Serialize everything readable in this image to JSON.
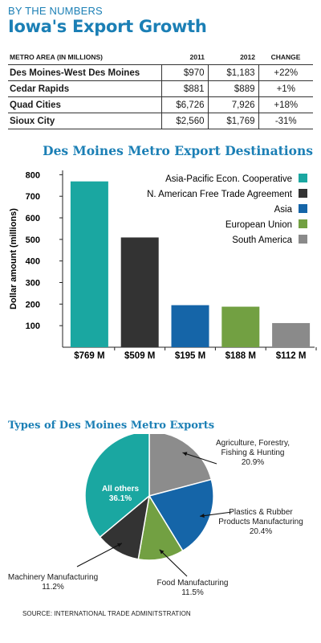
{
  "header": {
    "kicker": "BY THE NUMBERS",
    "title": "Iowa's Export Growth"
  },
  "table": {
    "columns": [
      "METRO AREA (IN MILLIONS)",
      "2011",
      "2012",
      "CHANGE"
    ],
    "rows": [
      [
        "Des Moines-West Des Moines",
        "$970",
        "$1,183",
        "+22%"
      ],
      [
        "Cedar Rapids",
        "$881",
        "$889",
        "+1%"
      ],
      [
        "Quad Cities",
        "$6,726",
        "7,926",
        "+18%"
      ],
      [
        "Sioux City",
        "$2,560",
        "$1,769",
        "-31%"
      ]
    ]
  },
  "chart_data": [
    {
      "type": "bar",
      "title": "Des Moines Metro Export Destinations",
      "ylabel": "Dollar amount (millions)",
      "ylim": [
        0,
        820
      ],
      "yticks": [
        100,
        200,
        300,
        400,
        500,
        600,
        700,
        800
      ],
      "categories": [
        "Asia-Pacific Econ. Cooperative",
        "N. American Free Trade Agreement",
        "Asia",
        "European Union",
        "South America"
      ],
      "values": [
        769,
        509,
        195,
        188,
        112
      ],
      "value_labels": [
        "$769 M",
        "$509 M",
        "$195 M",
        "$188 M",
        "$112 M"
      ],
      "colors": [
        "#1aa7a1",
        "#333333",
        "#1565a8",
        "#72a042",
        "#8a8a8a"
      ],
      "legend_position": "top-right",
      "grid": false
    },
    {
      "type": "pie",
      "title": "Types of Des Moines Metro Exports",
      "slices": [
        {
          "label": "Agriculture, Forestry, Fishing & Hunting",
          "label_lines": [
            "Agriculture, Forestry,",
            "Fishing & Hunting",
            "20.9%"
          ],
          "value": 20.9,
          "color": "#8c8c8c"
        },
        {
          "label": "Plastics & Rubber Products Manufacturing",
          "label_lines": [
            "Plastics & Rubber",
            "Products Manufacturing",
            "20.4%"
          ],
          "value": 20.4,
          "color": "#1565a8"
        },
        {
          "label": "Food Manufacturing",
          "label_lines": [
            "Food Manufacturing",
            "11.5%"
          ],
          "value": 11.5,
          "color": "#72a042"
        },
        {
          "label": "Machinery Manufacturing",
          "label_lines": [
            "Machinery Manufacturing",
            "11.2%"
          ],
          "value": 11.2,
          "color": "#333333"
        },
        {
          "label": "All others",
          "label_lines": [
            "All others",
            "36.1%"
          ],
          "value": 36.1,
          "color": "#1aa7a1"
        }
      ]
    }
  ],
  "source": "SOURCE: INTERNATIONAL TRADE ADMINITSTRATION"
}
